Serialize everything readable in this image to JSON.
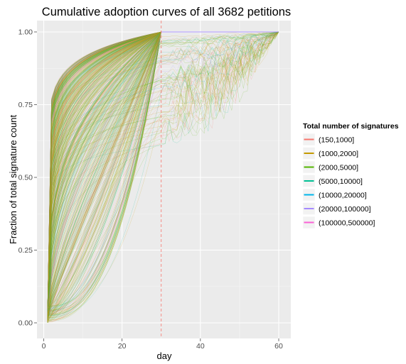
{
  "chart_data": {
    "type": "line",
    "title": "Cumulative adoption curves of all 3682 petitions",
    "xlabel": "day",
    "ylabel": "Fraction of total signature count",
    "xlim": [
      0,
      62
    ],
    "ylim": [
      0,
      1.04
    ],
    "x_ticks": [
      0,
      20,
      40,
      60
    ],
    "y_ticks": [
      "0.00",
      "0.25",
      "0.50",
      "0.75",
      "1.00"
    ],
    "grid": true,
    "legend_position": "right",
    "legend_title": "Total number of signatures",
    "vline": {
      "x": 30,
      "style": "dashed",
      "color": "#F8766D"
    },
    "series": [
      {
        "name": "(150,1000]",
        "color": "#F8766D"
      },
      {
        "name": "(1000,2000]",
        "color": "#C49A00"
      },
      {
        "name": "(2000,5000]",
        "color": "#53B400"
      },
      {
        "name": "(5000,10000]",
        "color": "#00C094"
      },
      {
        "name": "(10000,20000]",
        "color": "#00B6EB"
      },
      {
        "name": "(20000,100000]",
        "color": "#A58AFF"
      },
      {
        "name": "(100000,500000]",
        "color": "#FB61D7"
      }
    ],
    "note_curves": "3682 individual cumulative curves, each rising from 0 at day 1 to 1.00 by day 30 (most) or day 60"
  },
  "colors": {
    "panel_bg": "#EBEBEB",
    "grid_major": "#FFFFFF"
  }
}
